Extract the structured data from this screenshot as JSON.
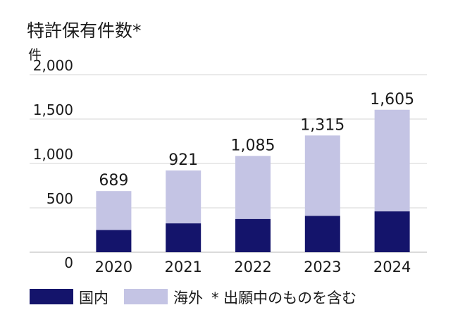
{
  "chart_data": {
    "type": "bar",
    "stacked": true,
    "title": "特許保有件数*",
    "unit_label": "件",
    "categories": [
      "2020",
      "2021",
      "2022",
      "2023",
      "2024"
    ],
    "totals": [
      "689",
      "921",
      "1,085",
      "1,315",
      "1,605"
    ],
    "series": [
      {
        "name": "国内",
        "color": "#14146b",
        "values": [
          250,
          325,
          375,
          410,
          460
        ]
      },
      {
        "name": "海外",
        "color": "#c4c4e4",
        "values": [
          439,
          596,
          710,
          905,
          1145
        ]
      }
    ],
    "ylim": [
      0,
      2000
    ],
    "yticks": [
      "0",
      "500",
      "1,000",
      "1,500",
      "2,000"
    ],
    "ytick_values": [
      0,
      500,
      1000,
      1500,
      2000
    ],
    "grid": true,
    "legend_position": "bottom-left",
    "note": "* 出願中のものを含む"
  }
}
